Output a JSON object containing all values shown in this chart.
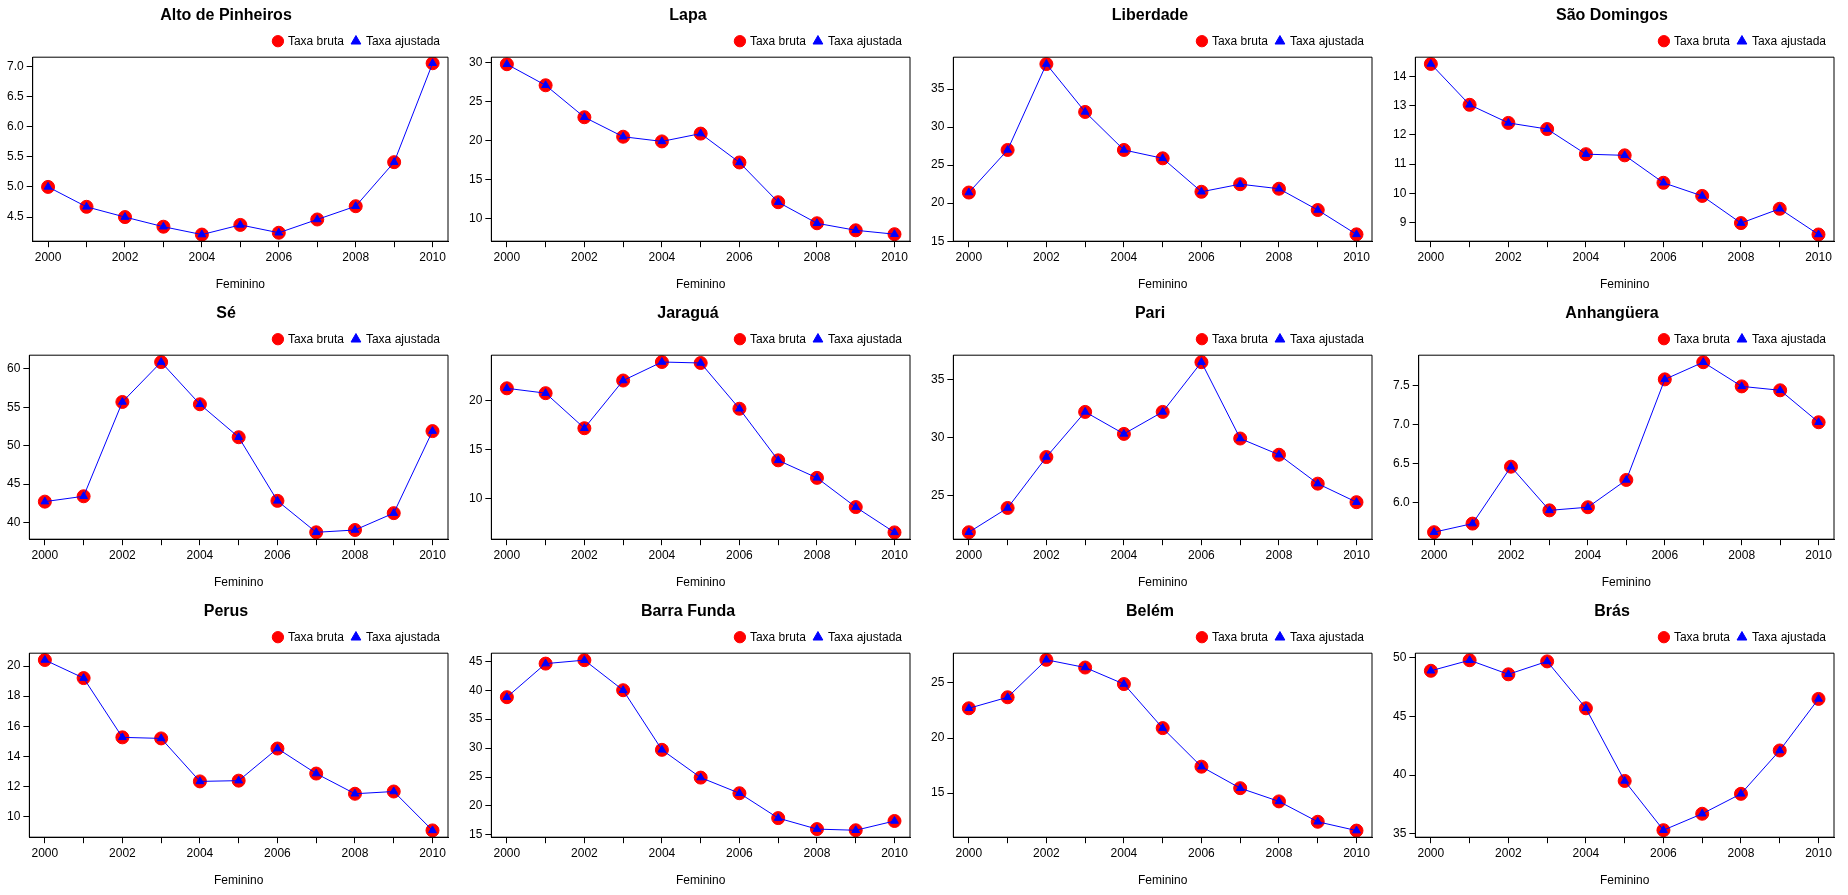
{
  "chart_data": [
    {
      "type": "line",
      "title": "Alto de Pinheiros",
      "xlabel": "Feminino",
      "legend": "top right",
      "x": [
        2000,
        2001,
        2002,
        2003,
        2004,
        2005,
        2006,
        2007,
        2008,
        2009,
        2010
      ],
      "xlim": [
        1999.6,
        2010.4
      ],
      "xticks": [
        2000,
        {
          "value": 2001,
          "label": null
        },
        2002,
        {
          "value": 2003,
          "label": null
        },
        2004,
        {
          "value": 2005,
          "label": null
        },
        2006,
        {
          "value": 2007,
          "label": null
        },
        2008,
        {
          "value": 2009,
          "label": null
        },
        2010
      ],
      "ylim": [
        4.1,
        7.15
      ],
      "yticks": [
        4.5,
        {
          "value": 5,
          "label": "5.0"
        },
        5.5,
        {
          "value": 6,
          "label": "6.0"
        },
        6.5,
        {
          "value": 7,
          "label": "7.0"
        }
      ],
      "series": [
        {
          "name": "Taxa bruta",
          "type": "scatter",
          "marker": "circle",
          "color": "#ff0000",
          "values": [
            5.0,
            4.67,
            4.5,
            4.34,
            4.21,
            4.37,
            4.24,
            4.46,
            4.68,
            5.41,
            7.05
          ]
        },
        {
          "name": "Taxa ajustada",
          "marker": "triangle",
          "color": "#0000ff",
          "values": [
            5.0,
            4.67,
            4.5,
            4.34,
            4.21,
            4.37,
            4.24,
            4.46,
            4.68,
            5.41,
            7.05
          ]
        }
      ]
    },
    {
      "type": "line",
      "title": "Lapa",
      "xlabel": "Feminino",
      "legend": "top right",
      "x": [
        2000,
        2001,
        2002,
        2003,
        2004,
        2005,
        2006,
        2007,
        2008,
        2009,
        2010
      ],
      "xlim": [
        1999.6,
        2010.4
      ],
      "xticks": [
        2000,
        {
          "value": 2001,
          "label": null
        },
        2002,
        {
          "value": 2003,
          "label": null
        },
        2004,
        {
          "value": 2005,
          "label": null
        },
        2006,
        {
          "value": 2007,
          "label": null
        },
        2008,
        {
          "value": 2009,
          "label": null
        },
        2010
      ],
      "ylim": [
        7.1,
        30.7
      ],
      "yticks": [
        10,
        15,
        20,
        25,
        30
      ],
      "series": [
        {
          "name": "Taxa bruta",
          "type": "scatter",
          "marker": "circle",
          "color": "#ff0000",
          "values": [
            29.8,
            27.1,
            23.0,
            20.5,
            19.9,
            20.9,
            17.2,
            12.1,
            9.4,
            8.5,
            8.0
          ]
        },
        {
          "name": "Taxa ajustada",
          "marker": "triangle",
          "color": "#0000ff",
          "values": [
            29.8,
            27.1,
            23.0,
            20.5,
            19.9,
            20.9,
            17.2,
            12.1,
            9.4,
            8.5,
            8.0
          ]
        }
      ]
    },
    {
      "type": "line",
      "title": "Liberdade",
      "xlabel": "Feminino",
      "legend": "top right",
      "x": [
        2000,
        2001,
        2002,
        2003,
        2004,
        2005,
        2006,
        2007,
        2008,
        2009,
        2010
      ],
      "xlim": [
        1999.6,
        2010.4
      ],
      "xticks": [
        2000,
        {
          "value": 2001,
          "label": null
        },
        2002,
        {
          "value": 2003,
          "label": null
        },
        2004,
        {
          "value": 2005,
          "label": null
        },
        2006,
        {
          "value": 2007,
          "label": null
        },
        2008,
        {
          "value": 2009,
          "label": null
        },
        2010
      ],
      "ylim": [
        15.0,
        39.2
      ],
      "yticks": [
        15,
        20,
        25,
        30,
        35
      ],
      "series": [
        {
          "name": "Taxa bruta",
          "type": "scatter",
          "marker": "circle",
          "color": "#ff0000",
          "values": [
            21.4,
            27.0,
            38.3,
            32.0,
            27.0,
            25.9,
            21.5,
            22.5,
            21.9,
            19.1,
            15.9
          ]
        },
        {
          "name": "Taxa ajustada",
          "marker": "triangle",
          "color": "#0000ff",
          "values": [
            21.4,
            27.0,
            38.3,
            32.0,
            27.0,
            25.9,
            21.5,
            22.5,
            21.9,
            19.1,
            15.9
          ]
        }
      ]
    },
    {
      "type": "line",
      "title": "São Domingos",
      "xlabel": "Feminino",
      "legend": "top right",
      "x": [
        2000,
        2001,
        2002,
        2003,
        2004,
        2005,
        2006,
        2007,
        2008,
        2009,
        2010
      ],
      "xlim": [
        1999.6,
        2010.4
      ],
      "xticks": [
        2000,
        {
          "value": 2001,
          "label": null
        },
        2002,
        {
          "value": 2003,
          "label": null
        },
        2004,
        {
          "value": 2005,
          "label": null
        },
        2006,
        {
          "value": 2007,
          "label": null
        },
        2008,
        {
          "value": 2009,
          "label": null
        },
        2010
      ],
      "ylim": [
        8.36,
        14.66
      ],
      "yticks": [
        9,
        10,
        11,
        12,
        13,
        14
      ],
      "series": [
        {
          "name": "Taxa bruta",
          "type": "scatter",
          "marker": "circle",
          "color": "#ff0000",
          "values": [
            14.43,
            13.03,
            12.41,
            12.2,
            11.34,
            11.3,
            10.36,
            9.91,
            8.98,
            9.47,
            8.59
          ]
        },
        {
          "name": "Taxa ajustada",
          "marker": "triangle",
          "color": "#0000ff",
          "values": [
            14.43,
            13.03,
            12.41,
            12.2,
            11.34,
            11.3,
            10.36,
            9.91,
            8.98,
            9.47,
            8.59
          ]
        }
      ]
    },
    {
      "type": "line",
      "title": "Sé",
      "xlabel": "Feminino",
      "legend": "top right",
      "x": [
        2000,
        2001,
        2002,
        2003,
        2004,
        2005,
        2006,
        2007,
        2008,
        2009,
        2010
      ],
      "xlim": [
        1999.6,
        2010.4
      ],
      "xticks": [
        2000,
        {
          "value": 2001,
          "label": null
        },
        2002,
        {
          "value": 2003,
          "label": null
        },
        2004,
        {
          "value": 2005,
          "label": null
        },
        2006,
        {
          "value": 2007,
          "label": null
        },
        2008,
        {
          "value": 2009,
          "label": null
        },
        2010
      ],
      "ylim": [
        37.8,
        61.8
      ],
      "yticks": [
        40,
        45,
        50,
        55,
        60
      ],
      "series": [
        {
          "name": "Taxa bruta",
          "type": "scatter",
          "marker": "circle",
          "color": "#ff0000",
          "values": [
            42.7,
            43.4,
            55.7,
            60.9,
            55.4,
            51.1,
            42.8,
            38.7,
            39.0,
            41.2,
            51.9
          ]
        },
        {
          "name": "Taxa ajustada",
          "marker": "triangle",
          "color": "#0000ff",
          "values": [
            42.7,
            43.4,
            55.7,
            60.9,
            55.4,
            51.1,
            42.8,
            38.7,
            39.0,
            41.2,
            51.9
          ]
        }
      ]
    },
    {
      "type": "line",
      "title": "Jaraguá",
      "xlabel": "Feminino",
      "legend": "top right",
      "x": [
        2000,
        2001,
        2002,
        2003,
        2004,
        2005,
        2006,
        2007,
        2008,
        2009,
        2010
      ],
      "xlim": [
        1999.6,
        2010.4
      ],
      "xticks": [
        2000,
        {
          "value": 2001,
          "label": null
        },
        2002,
        {
          "value": 2003,
          "label": null
        },
        2004,
        {
          "value": 2005,
          "label": null
        },
        2006,
        {
          "value": 2007,
          "label": null
        },
        2008,
        {
          "value": 2009,
          "label": null
        },
        2010
      ],
      "ylim": [
        5.8,
        24.7
      ],
      "yticks": [
        10,
        15,
        20
      ],
      "series": [
        {
          "name": "Taxa bruta",
          "type": "scatter",
          "marker": "circle",
          "color": "#ff0000",
          "values": [
            21.3,
            20.8,
            17.2,
            22.1,
            24.0,
            23.9,
            19.2,
            13.9,
            12.1,
            9.1,
            6.5
          ]
        },
        {
          "name": "Taxa ajustada",
          "marker": "triangle",
          "color": "#0000ff",
          "values": [
            21.3,
            20.8,
            17.2,
            22.1,
            24.0,
            23.9,
            19.2,
            13.9,
            12.1,
            9.1,
            6.5
          ]
        }
      ]
    },
    {
      "type": "line",
      "title": "Pari",
      "xlabel": "Feminino",
      "legend": "top right",
      "x": [
        2000,
        2001,
        2002,
        2003,
        2004,
        2005,
        2006,
        2007,
        2008,
        2009,
        2010
      ],
      "xlim": [
        1999.6,
        2010.4
      ],
      "xticks": [
        2000,
        {
          "value": 2001,
          "label": null
        },
        2002,
        {
          "value": 2003,
          "label": null
        },
        2004,
        {
          "value": 2005,
          "label": null
        },
        2006,
        {
          "value": 2007,
          "label": null
        },
        2008,
        {
          "value": 2009,
          "label": null
        },
        2010
      ],
      "ylim": [
        21.2,
        37.1
      ],
      "yticks": [
        25,
        30,
        35
      ],
      "series": [
        {
          "name": "Taxa bruta",
          "type": "scatter",
          "marker": "circle",
          "color": "#ff0000",
          "values": [
            21.8,
            23.9,
            28.3,
            32.2,
            30.3,
            32.2,
            36.5,
            29.9,
            28.5,
            26.0,
            24.4
          ]
        },
        {
          "name": "Taxa ajustada",
          "marker": "triangle",
          "color": "#0000ff",
          "values": [
            21.8,
            23.9,
            28.3,
            32.2,
            30.3,
            32.2,
            36.5,
            29.9,
            28.5,
            26.0,
            24.4
          ]
        }
      ]
    },
    {
      "type": "line",
      "title": "Anhangüera",
      "xlabel": "Feminino",
      "legend": "top right",
      "x": [
        2000,
        2001,
        2002,
        2003,
        2004,
        2005,
        2006,
        2007,
        2008,
        2009,
        2010
      ],
      "xlim": [
        1999.6,
        2010.4
      ],
      "xticks": [
        2000,
        {
          "value": 2001,
          "label": null
        },
        2002,
        {
          "value": 2003,
          "label": null
        },
        2004,
        {
          "value": 2005,
          "label": null
        },
        2006,
        {
          "value": 2007,
          "label": null
        },
        2008,
        {
          "value": 2009,
          "label": null
        },
        2010
      ],
      "ylim": [
        5.53,
        7.89
      ],
      "yticks": [
        {
          "value": 6,
          "label": "6.0"
        },
        6.5,
        {
          "value": 7,
          "label": "7.0"
        },
        7.5
      ],
      "series": [
        {
          "name": "Taxa bruta",
          "type": "scatter",
          "marker": "circle",
          "color": "#ff0000",
          "values": [
            5.62,
            5.73,
            6.46,
            5.9,
            5.94,
            6.29,
            7.58,
            7.8,
            7.49,
            7.44,
            7.03
          ]
        },
        {
          "name": "Taxa ajustada",
          "marker": "triangle",
          "color": "#0000ff",
          "values": [
            5.62,
            5.73,
            6.46,
            5.9,
            5.94,
            6.29,
            7.58,
            7.8,
            7.49,
            7.44,
            7.03
          ]
        }
      ]
    },
    {
      "type": "line",
      "title": "Perus",
      "xlabel": "Feminino",
      "legend": "top right",
      "x": [
        2000,
        2001,
        2002,
        2003,
        2004,
        2005,
        2006,
        2007,
        2008,
        2009,
        2010
      ],
      "xlim": [
        1999.6,
        2010.4
      ],
      "xticks": [
        2000,
        {
          "value": 2001,
          "label": null
        },
        2002,
        {
          "value": 2003,
          "label": null
        },
        2004,
        {
          "value": 2005,
          "label": null
        },
        2006,
        {
          "value": 2007,
          "label": null
        },
        2008,
        {
          "value": 2009,
          "label": null
        },
        2010
      ],
      "ylim": [
        8.65,
        20.85
      ],
      "yticks": [
        10,
        12,
        14,
        16,
        18,
        20
      ],
      "series": [
        {
          "name": "Taxa bruta",
          "type": "scatter",
          "marker": "circle",
          "color": "#ff0000",
          "values": [
            20.4,
            19.2,
            15.27,
            15.2,
            12.35,
            12.4,
            14.53,
            12.87,
            11.53,
            11.68,
            9.1
          ]
        },
        {
          "name": "Taxa ajustada",
          "marker": "triangle",
          "color": "#0000ff",
          "values": [
            20.4,
            19.2,
            15.27,
            15.2,
            12.35,
            12.4,
            14.53,
            12.87,
            11.53,
            11.68,
            9.1
          ]
        }
      ]
    },
    {
      "type": "line",
      "title": "Barra Funda",
      "xlabel": "Feminino",
      "legend": "top right",
      "x": [
        2000,
        2001,
        2002,
        2003,
        2004,
        2005,
        2006,
        2007,
        2008,
        2009,
        2010
      ],
      "xlim": [
        1999.6,
        2010.4
      ],
      "xticks": [
        2000,
        {
          "value": 2001,
          "label": null
        },
        2002,
        {
          "value": 2003,
          "label": null
        },
        2004,
        {
          "value": 2005,
          "label": null
        },
        2006,
        {
          "value": 2007,
          "label": null
        },
        2008,
        {
          "value": 2009,
          "label": null
        },
        2010
      ],
      "ylim": [
        14.6,
        46.4
      ],
      "yticks": [
        15,
        20,
        25,
        30,
        35,
        40,
        45
      ],
      "series": [
        {
          "name": "Taxa bruta",
          "type": "scatter",
          "marker": "circle",
          "color": "#ff0000",
          "values": [
            38.8,
            44.6,
            45.2,
            40.0,
            29.7,
            24.9,
            22.2,
            17.9,
            16.0,
            15.8,
            17.4
          ]
        },
        {
          "name": "Taxa ajustada",
          "marker": "triangle",
          "color": "#0000ff",
          "values": [
            38.8,
            44.6,
            45.2,
            40.0,
            29.7,
            24.9,
            22.2,
            17.9,
            16.0,
            15.8,
            17.4
          ]
        }
      ]
    },
    {
      "type": "line",
      "title": "Belém",
      "xlabel": "Feminino",
      "legend": "top right",
      "x": [
        2000,
        2001,
        2002,
        2003,
        2004,
        2005,
        2006,
        2007,
        2008,
        2009,
        2010
      ],
      "xlim": [
        1999.6,
        2010.4
      ],
      "xticks": [
        2000,
        {
          "value": 2001,
          "label": null
        },
        2002,
        {
          "value": 2003,
          "label": null
        },
        2004,
        {
          "value": 2005,
          "label": null
        },
        2006,
        {
          "value": 2007,
          "label": null
        },
        2008,
        {
          "value": 2009,
          "label": null
        },
        2010
      ],
      "ylim": [
        11.0,
        27.7
      ],
      "yticks": [
        15,
        20,
        25
      ],
      "series": [
        {
          "name": "Taxa bruta",
          "type": "scatter",
          "marker": "circle",
          "color": "#ff0000",
          "values": [
            22.7,
            23.7,
            27.1,
            26.4,
            24.9,
            20.9,
            17.4,
            15.45,
            14.25,
            12.4,
            11.6
          ]
        },
        {
          "name": "Taxa ajustada",
          "marker": "triangle",
          "color": "#0000ff",
          "values": [
            22.7,
            23.7,
            27.1,
            26.4,
            24.9,
            20.9,
            17.4,
            15.45,
            14.25,
            12.4,
            11.6
          ]
        }
      ]
    },
    {
      "type": "line",
      "title": "Brás",
      "xlabel": "Feminino",
      "legend": "top right",
      "x": [
        2000,
        2001,
        2002,
        2003,
        2004,
        2005,
        2006,
        2007,
        2008,
        2009,
        2010
      ],
      "xlim": [
        1999.6,
        2010.4
      ],
      "xticks": [
        2000,
        {
          "value": 2001,
          "label": null
        },
        2002,
        {
          "value": 2003,
          "label": null
        },
        2004,
        {
          "value": 2005,
          "label": null
        },
        2006,
        {
          "value": 2007,
          "label": null
        },
        2008,
        {
          "value": 2009,
          "label": null
        },
        2010
      ],
      "ylim": [
        34.7,
        50.4
      ],
      "yticks": [
        35,
        40,
        45,
        50
      ],
      "series": [
        {
          "name": "Taxa bruta",
          "type": "scatter",
          "marker": "circle",
          "color": "#ff0000",
          "values": [
            48.9,
            49.8,
            48.6,
            49.7,
            45.7,
            39.5,
            35.3,
            36.7,
            38.4,
            42.1,
            46.5
          ]
        },
        {
          "name": "Taxa ajustada",
          "marker": "triangle",
          "color": "#0000ff",
          "values": [
            48.9,
            49.8,
            48.6,
            49.7,
            45.7,
            39.5,
            35.3,
            36.7,
            38.4,
            42.1,
            46.5
          ]
        }
      ]
    }
  ]
}
